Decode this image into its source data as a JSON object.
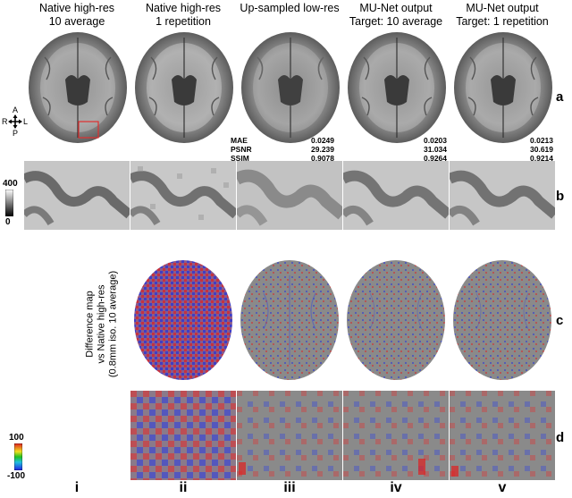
{
  "columns": [
    {
      "title_line1": "Native high-res",
      "title_line2": "10 average",
      "roman": "i"
    },
    {
      "title_line1": "Native high-res",
      "title_line2": "1 repetition",
      "roman": "ii"
    },
    {
      "title_line1": "Up-sampled low-res",
      "title_line2": "",
      "roman": "iii"
    },
    {
      "title_line1": "MU-Net output",
      "title_line2": "Target: 10 average",
      "roman": "iv"
    },
    {
      "title_line1": "MU-Net output",
      "title_line2": "Target: 1 repetition",
      "roman": "v"
    }
  ],
  "rows": {
    "a": "a",
    "b": "b",
    "c": "c",
    "d": "d"
  },
  "orientation": {
    "anterior": "A",
    "posterior": "P",
    "right": "R",
    "left": "L"
  },
  "metric_labels": {
    "mae": "MAE",
    "psnr": "PSNR",
    "ssim": "SSIM"
  },
  "metrics": [
    {
      "mae": "0.0249",
      "psnr": "29.239",
      "ssim": "0.9078"
    },
    {
      "mae": "0.0203",
      "psnr": "31.034",
      "ssim": "0.9264"
    },
    {
      "mae": "0.0213",
      "psnr": "30.619",
      "ssim": "0.9214"
    }
  ],
  "grayscale_bar": {
    "max": "400",
    "min": "0"
  },
  "difference_label": {
    "line1": "Difference map",
    "line2": "vs Native high-res",
    "line3": "(0.8mm iso. 10 average)"
  },
  "diff_colorbar": {
    "max": "100",
    "min": "-100"
  },
  "colors": {
    "roi_box": "#e03030",
    "positive": "#e02020",
    "negative": "#2030e0",
    "neutral": "#8a8a8a"
  }
}
